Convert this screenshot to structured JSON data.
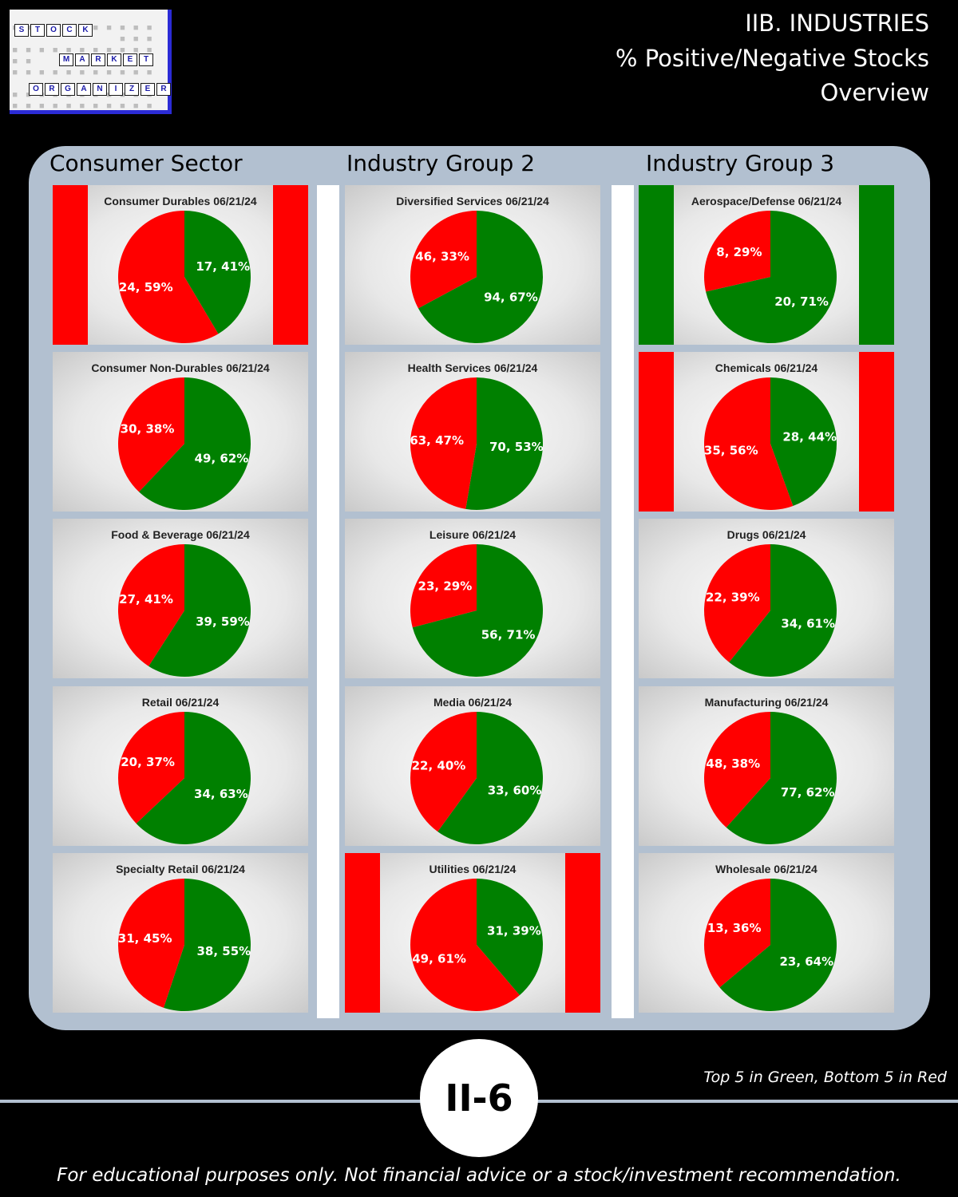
{
  "logo": {
    "row1": [
      "S",
      "T",
      "O",
      "C",
      "K"
    ],
    "row2": [
      "M",
      "A",
      "R",
      "K",
      "E",
      "T"
    ],
    "row3": [
      "O",
      "R",
      "G",
      "A",
      "N",
      "I",
      "Z",
      "E",
      "R"
    ]
  },
  "header": {
    "line1": "IIB. INDUSTRIES",
    "line2": "% Positive/Negative Stocks",
    "line3": "Overview"
  },
  "columns": [
    "Consumer Sector",
    "Industry Group 2",
    "Industry Group 3"
  ],
  "colors": {
    "positive": "#008000",
    "negative": "#ff0000"
  },
  "chart_data": [
    {
      "type": "pie",
      "title": "Consumer Durables 06/21/24",
      "positive": 17,
      "positive_pct": 41,
      "negative": 24,
      "negative_pct": 59,
      "highlight": "bottom5",
      "positive_label": "17, 41%",
      "negative_label": "24, 59%"
    },
    {
      "type": "pie",
      "title": "Consumer Non-Durables 06/21/24",
      "positive": 49,
      "positive_pct": 62,
      "negative": 30,
      "negative_pct": 38,
      "highlight": "",
      "positive_label": "49, 62%",
      "negative_label": "30, 38%"
    },
    {
      "type": "pie",
      "title": "Food & Beverage 06/21/24",
      "positive": 39,
      "positive_pct": 59,
      "negative": 27,
      "negative_pct": 41,
      "highlight": "",
      "positive_label": "39, 59%",
      "negative_label": "27, 41%"
    },
    {
      "type": "pie",
      "title": "Retail 06/21/24",
      "positive": 34,
      "positive_pct": 63,
      "negative": 20,
      "negative_pct": 37,
      "highlight": "",
      "positive_label": "34, 63%",
      "negative_label": "20, 37%"
    },
    {
      "type": "pie",
      "title": "Specialty Retail 06/21/24",
      "positive": 38,
      "positive_pct": 55,
      "negative": 31,
      "negative_pct": 45,
      "highlight": "",
      "positive_label": "38, 55%",
      "negative_label": "31, 45%"
    },
    {
      "type": "pie",
      "title": "Diversified Services 06/21/24",
      "positive": 94,
      "positive_pct": 67,
      "negative": 46,
      "negative_pct": 33,
      "highlight": "",
      "positive_label": "94, 67%",
      "negative_label": "46, 33%"
    },
    {
      "type": "pie",
      "title": "Health Services 06/21/24",
      "positive": 70,
      "positive_pct": 53,
      "negative": 63,
      "negative_pct": 47,
      "highlight": "",
      "positive_label": "70, 53%",
      "negative_label": "63, 47%"
    },
    {
      "type": "pie",
      "title": "Leisure 06/21/24",
      "positive": 56,
      "positive_pct": 71,
      "negative": 23,
      "negative_pct": 29,
      "highlight": "",
      "positive_label": "56, 71%",
      "negative_label": "23, 29%"
    },
    {
      "type": "pie",
      "title": "Media 06/21/24",
      "positive": 33,
      "positive_pct": 60,
      "negative": 22,
      "negative_pct": 40,
      "highlight": "",
      "positive_label": "33, 60%",
      "negative_label": "22, 40%"
    },
    {
      "type": "pie",
      "title": "Utilities 06/21/24",
      "positive": 31,
      "positive_pct": 39,
      "negative": 49,
      "negative_pct": 61,
      "highlight": "bottom5",
      "positive_label": "31, 39%",
      "negative_label": "49, 61%"
    },
    {
      "type": "pie",
      "title": "Aerospace/Defense 06/21/24",
      "positive": 20,
      "positive_pct": 71,
      "negative": 8,
      "negative_pct": 29,
      "highlight": "top5",
      "positive_label": "20, 71%",
      "negative_label": "8, 29%"
    },
    {
      "type": "pie",
      "title": "Chemicals 06/21/24",
      "positive": 28,
      "positive_pct": 44,
      "negative": 35,
      "negative_pct": 56,
      "highlight": "bottom5",
      "positive_label": "28, 44%",
      "negative_label": "35, 56%"
    },
    {
      "type": "pie",
      "title": "Drugs 06/21/24",
      "positive": 34,
      "positive_pct": 61,
      "negative": 22,
      "negative_pct": 39,
      "highlight": "",
      "positive_label": "34, 61%",
      "negative_label": "22, 39%"
    },
    {
      "type": "pie",
      "title": "Manufacturing 06/21/24",
      "positive": 77,
      "positive_pct": 62,
      "negative": 48,
      "negative_pct": 38,
      "highlight": "",
      "positive_label": "77, 62%",
      "negative_label": "48, 38%"
    },
    {
      "type": "pie",
      "title": "Wholesale 06/21/24",
      "positive": 23,
      "positive_pct": 64,
      "negative": 13,
      "negative_pct": 36,
      "highlight": "",
      "positive_label": "23, 64%",
      "negative_label": "13, 36%"
    }
  ],
  "page_badge": "II-6",
  "legend_note": "Top 5 in Green, Bottom 5 in Red",
  "disclaimer": "For educational purposes only. Not financial advice or a stock/investment recommendation."
}
